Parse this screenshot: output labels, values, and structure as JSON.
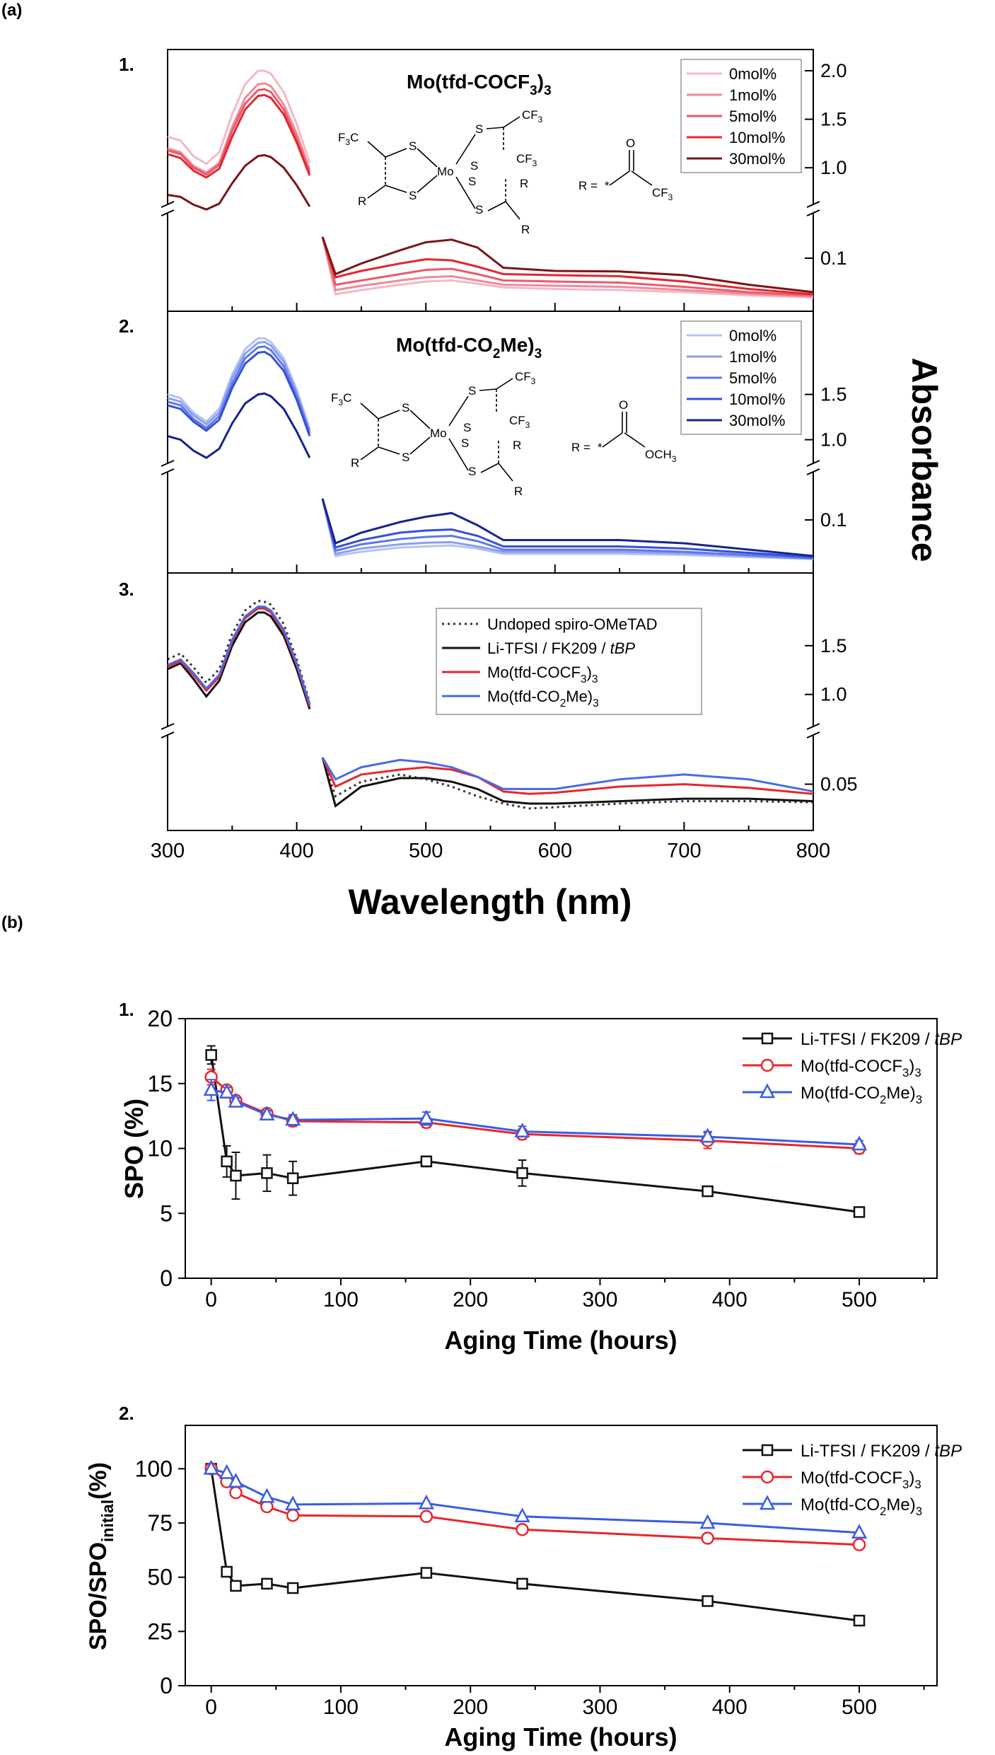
{
  "figure": {
    "part_a_label": "(a)",
    "part_b_label": "(b)"
  },
  "chart_data": [
    {
      "id": "a1",
      "type": "line",
      "panel_label": "1.",
      "title_main": "Mo(tfd-COCF",
      "title_sub": "3",
      "title_tail": ")",
      "title_sub2": "3",
      "xlim": [
        300,
        800
      ],
      "y_right_ticks_upper": [
        "2.0",
        "1.5",
        "1.0"
      ],
      "y_right_ticks_lower": [
        "0.1"
      ],
      "legend_position": "top-right",
      "series": [
        {
          "name": "0mol%",
          "color": "#f4b8c4"
        },
        {
          "name": "1mol%",
          "color": "#ef8a9a"
        },
        {
          "name": "5mol%",
          "color": "#eb5a6c"
        },
        {
          "name": "10mol%",
          "color": "#e3262f"
        },
        {
          "name": "30mol%",
          "color": "#7b1515"
        }
      ],
      "upper_x": [
        300,
        310,
        320,
        330,
        340,
        350,
        360,
        370,
        375,
        380,
        390,
        400,
        410
      ],
      "upper_values": [
        [
          1.32,
          1.28,
          1.12,
          1.04,
          1.16,
          1.55,
          1.86,
          2.0,
          2.0,
          1.97,
          1.78,
          1.45,
          1.05
        ],
        [
          1.2,
          1.16,
          1.02,
          0.95,
          1.05,
          1.42,
          1.72,
          1.86,
          1.87,
          1.84,
          1.65,
          1.35,
          0.98
        ],
        [
          1.18,
          1.14,
          1.0,
          0.93,
          1.03,
          1.38,
          1.66,
          1.8,
          1.81,
          1.78,
          1.6,
          1.3,
          0.95
        ],
        [
          1.14,
          1.1,
          0.97,
          0.9,
          0.99,
          1.32,
          1.6,
          1.74,
          1.75,
          1.72,
          1.55,
          1.26,
          0.92
        ],
        [
          0.72,
          0.7,
          0.62,
          0.57,
          0.63,
          0.84,
          1.02,
          1.12,
          1.13,
          1.11,
          1.0,
          0.82,
          0.6
        ]
      ],
      "lower_x": [
        420,
        430,
        450,
        480,
        500,
        520,
        540,
        560,
        600,
        650,
        700,
        750,
        800
      ],
      "lower_values": [
        [
          0.14,
          0.032,
          0.04,
          0.05,
          0.056,
          0.058,
          0.052,
          0.045,
          0.042,
          0.04,
          0.036,
          0.03,
          0.026
        ],
        [
          0.14,
          0.04,
          0.048,
          0.058,
          0.064,
          0.066,
          0.058,
          0.05,
          0.048,
          0.046,
          0.04,
          0.033,
          0.028
        ],
        [
          0.14,
          0.05,
          0.058,
          0.07,
          0.078,
          0.08,
          0.07,
          0.058,
          0.056,
          0.054,
          0.046,
          0.036,
          0.03
        ],
        [
          0.14,
          0.064,
          0.076,
          0.09,
          0.098,
          0.096,
          0.084,
          0.07,
          0.068,
          0.066,
          0.056,
          0.042,
          0.032
        ],
        [
          0.14,
          0.07,
          0.09,
          0.115,
          0.13,
          0.135,
          0.12,
          0.082,
          0.076,
          0.075,
          0.068,
          0.05,
          0.036
        ]
      ],
      "r_group_label": "R ="
    },
    {
      "id": "a2",
      "type": "line",
      "panel_label": "2.",
      "title_main": "Mo(tfd-CO",
      "title_sub": "2",
      "title_tail": "Me)",
      "title_sub2": "3",
      "xlim": [
        300,
        800
      ],
      "y_right_ticks_upper": [
        "1.5",
        "1.0"
      ],
      "y_right_ticks_lower": [
        "0.1"
      ],
      "legend_position": "top-right",
      "series": [
        {
          "name": "0mol%",
          "color": "#b6c2f2"
        },
        {
          "name": "1mol%",
          "color": "#8c9ef0"
        },
        {
          "name": "5mol%",
          "color": "#5f78e6"
        },
        {
          "name": "10mol%",
          "color": "#3550d8"
        },
        {
          "name": "30mol%",
          "color": "#16248f"
        }
      ],
      "upper_x": [
        300,
        310,
        320,
        330,
        340,
        350,
        360,
        370,
        375,
        380,
        390,
        400,
        410
      ],
      "upper_values": [
        [
          1.5,
          1.46,
          1.3,
          1.2,
          1.34,
          1.72,
          2.0,
          2.12,
          2.12,
          2.08,
          1.9,
          1.55,
          1.12
        ],
        [
          1.46,
          1.42,
          1.27,
          1.17,
          1.3,
          1.68,
          1.95,
          2.07,
          2.08,
          2.04,
          1.86,
          1.52,
          1.1
        ],
        [
          1.42,
          1.38,
          1.23,
          1.13,
          1.26,
          1.62,
          1.9,
          2.02,
          2.03,
          1.99,
          1.81,
          1.48,
          1.07
        ],
        [
          1.38,
          1.34,
          1.2,
          1.1,
          1.22,
          1.57,
          1.84,
          1.96,
          1.97,
          1.93,
          1.76,
          1.44,
          1.04
        ],
        [
          1.04,
          1.0,
          0.88,
          0.8,
          0.9,
          1.18,
          1.4,
          1.5,
          1.51,
          1.48,
          1.34,
          1.09,
          0.8
        ]
      ],
      "lower_x": [
        420,
        430,
        450,
        480,
        500,
        520,
        540,
        560,
        600,
        650,
        700,
        750,
        800
      ],
      "lower_values": [
        [
          0.14,
          0.032,
          0.04,
          0.048,
          0.05,
          0.052,
          0.046,
          0.036,
          0.036,
          0.036,
          0.034,
          0.03,
          0.026
        ],
        [
          0.14,
          0.036,
          0.046,
          0.054,
          0.057,
          0.058,
          0.05,
          0.04,
          0.04,
          0.04,
          0.037,
          0.032,
          0.027
        ],
        [
          0.14,
          0.042,
          0.054,
          0.064,
          0.068,
          0.07,
          0.06,
          0.044,
          0.044,
          0.044,
          0.04,
          0.034,
          0.028
        ],
        [
          0.14,
          0.048,
          0.062,
          0.076,
          0.08,
          0.082,
          0.07,
          0.05,
          0.05,
          0.05,
          0.046,
          0.038,
          0.03
        ],
        [
          0.14,
          0.056,
          0.076,
          0.096,
          0.106,
          0.113,
          0.09,
          0.062,
          0.062,
          0.062,
          0.056,
          0.044,
          0.032
        ]
      ],
      "r_group_label": "R ="
    },
    {
      "id": "a3",
      "type": "line",
      "panel_label": "3.",
      "xlabel": "Wavelength (nm)",
      "ylabel": "Absorbance",
      "xlim": [
        300,
        800
      ],
      "x_ticks": [
        300,
        400,
        500,
        600,
        700,
        800
      ],
      "y_right_ticks_upper": [
        "1.5",
        "1.0"
      ],
      "y_right_ticks_lower": [
        "0.05"
      ],
      "legend_position": "top-right",
      "series": [
        {
          "name_main": "Undoped spiro-OMeTAD",
          "name_sub": "",
          "name_tail": "",
          "color": "#333333",
          "dash": true
        },
        {
          "name_main": "Li-TFSI / FK209 / ",
          "name_sub": "",
          "name_tail": "tBP",
          "color": "#111111",
          "dash": false
        },
        {
          "name_main": "Mo(tfd-COCF",
          "name_sub": "3",
          "name_tail": ")3",
          "color": "#e8262c",
          "dash": false
        },
        {
          "name_main": "Mo(tfd-CO",
          "name_sub": "2",
          "name_tail": "Me)3",
          "color": "#4a6ae6",
          "dash": false
        }
      ],
      "upper_x": [
        300,
        310,
        320,
        330,
        340,
        350,
        360,
        370,
        375,
        380,
        390,
        400,
        410
      ],
      "upper_values": [
        [
          1.36,
          1.42,
          1.28,
          1.12,
          1.26,
          1.62,
          1.86,
          1.96,
          1.95,
          1.92,
          1.72,
          1.36,
          0.92
        ],
        [
          1.26,
          1.32,
          1.16,
          0.98,
          1.14,
          1.5,
          1.74,
          1.84,
          1.84,
          1.8,
          1.6,
          1.26,
          0.85
        ],
        [
          1.28,
          1.34,
          1.2,
          1.04,
          1.18,
          1.54,
          1.78,
          1.88,
          1.88,
          1.84,
          1.64,
          1.3,
          0.88
        ],
        [
          1.3,
          1.36,
          1.22,
          1.06,
          1.2,
          1.56,
          1.8,
          1.9,
          1.9,
          1.86,
          1.66,
          1.32,
          0.9
        ]
      ],
      "lower_x": [
        420,
        430,
        450,
        480,
        500,
        520,
        540,
        560,
        580,
        600,
        650,
        700,
        750,
        800
      ],
      "lower_values": [
        [
          0.072,
          0.04,
          0.052,
          0.058,
          0.054,
          0.048,
          0.04,
          0.034,
          0.03,
          0.031,
          0.034,
          0.036,
          0.036,
          0.035
        ],
        [
          0.072,
          0.032,
          0.048,
          0.055,
          0.055,
          0.052,
          0.046,
          0.036,
          0.034,
          0.034,
          0.036,
          0.038,
          0.038,
          0.036
        ],
        [
          0.072,
          0.048,
          0.058,
          0.062,
          0.064,
          0.062,
          0.056,
          0.044,
          0.042,
          0.043,
          0.048,
          0.05,
          0.047,
          0.042
        ],
        [
          0.072,
          0.054,
          0.064,
          0.07,
          0.068,
          0.064,
          0.056,
          0.046,
          0.046,
          0.046,
          0.054,
          0.058,
          0.054,
          0.044
        ]
      ]
    },
    {
      "id": "b1",
      "type": "line",
      "panel_label": "1.",
      "xlabel": "Aging Time (hours)",
      "ylabel": "SPO (%)",
      "xlim": [
        -20,
        560
      ],
      "ylim": [
        0,
        20
      ],
      "x_ticks": [
        0,
        100,
        200,
        300,
        400,
        500
      ],
      "y_ticks": [
        0,
        5,
        10,
        15,
        20
      ],
      "legend_position": "top-right",
      "x": [
        0,
        12,
        19,
        43,
        63,
        166,
        240,
        383,
        500
      ],
      "series": [
        {
          "name_main": "Li-TFSI / FK209 / ",
          "name_sub": "",
          "name_tail": "tBP",
          "color": "#111111",
          "marker": "square",
          "values": [
            17.2,
            9.0,
            7.9,
            8.1,
            7.7,
            9.0,
            8.1,
            6.7,
            5.1
          ],
          "errors": [
            0.7,
            1.2,
            1.8,
            1.4,
            1.3,
            0.4,
            1.0,
            0.3,
            0.3
          ]
        },
        {
          "name_main": "Mo(tfd-COCF",
          "name_sub": "3",
          "name_tail": ")3",
          "color": "#e8262c",
          "marker": "circle",
          "values": [
            15.5,
            14.5,
            13.7,
            12.7,
            12.1,
            12.0,
            11.1,
            10.6,
            10.0
          ],
          "errors": [
            0.6,
            0.3,
            0.3,
            0.3,
            0.4,
            0.4,
            0.4,
            0.6,
            0.4
          ]
        },
        {
          "name_main": "Mo(tfd-CO",
          "name_sub": "2",
          "name_tail": "Me)3",
          "color": "#3b5ce6",
          "marker": "triangle",
          "values": [
            14.5,
            14.3,
            13.6,
            12.6,
            12.2,
            12.3,
            11.3,
            10.9,
            10.3
          ],
          "errors": [
            0.8,
            0.4,
            0.3,
            0.3,
            0.4,
            0.5,
            0.4,
            0.4,
            0.3
          ]
        }
      ]
    },
    {
      "id": "b2",
      "type": "line",
      "panel_label": "2.",
      "xlabel": "Aging Time (hours)",
      "ylabel_main": "SPO/SPO",
      "ylabel_sub": "initial",
      "ylabel_tail": "(%)",
      "xlim": [
        -20,
        560
      ],
      "ylim": [
        0,
        120
      ],
      "x_ticks": [
        0,
        100,
        200,
        300,
        400,
        500
      ],
      "y_ticks": [
        0,
        25,
        50,
        75,
        100
      ],
      "legend_position": "top-right",
      "x": [
        0,
        12,
        19,
        43,
        63,
        166,
        240,
        383,
        500
      ],
      "series": [
        {
          "name_main": "Li-TFSI / FK209 / ",
          "name_sub": "",
          "name_tail": "tBP",
          "color": "#111111",
          "marker": "square",
          "values": [
            100,
            52.5,
            46,
            47,
            45,
            52,
            47,
            39,
            30
          ]
        },
        {
          "name_main": "Mo(tfd-COCF",
          "name_sub": "3",
          "name_tail": ")3",
          "color": "#e8262c",
          "marker": "circle",
          "values": [
            100,
            94,
            89,
            82.5,
            78.5,
            78,
            72,
            68,
            65
          ]
        },
        {
          "name_main": "Mo(tfd-CO",
          "name_sub": "2",
          "name_tail": "Me)3",
          "color": "#3b5ce6",
          "marker": "triangle",
          "values": [
            100,
            98,
            94,
            87,
            83.5,
            84,
            78,
            75,
            70.5
          ]
        }
      ]
    }
  ]
}
